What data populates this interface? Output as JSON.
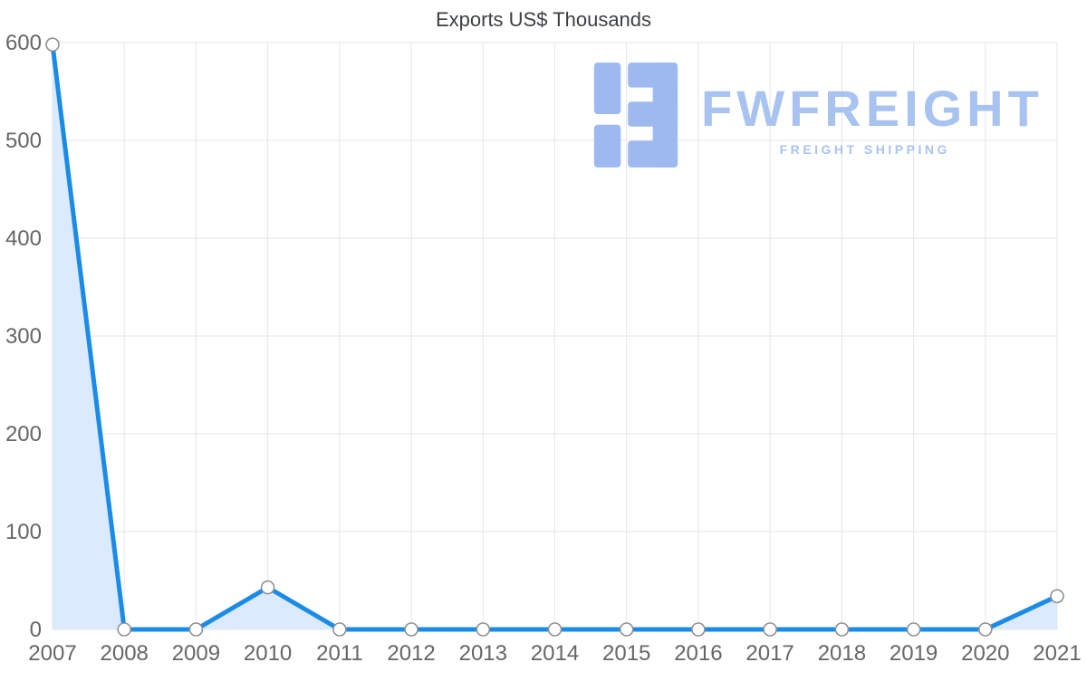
{
  "chart_data": {
    "type": "area",
    "title": "Exports US$ Thousands",
    "x": [
      "2007",
      "2008",
      "2009",
      "2010",
      "2011",
      "2012",
      "2013",
      "2014",
      "2015",
      "2016",
      "2017",
      "2018",
      "2019",
      "2020",
      "2021"
    ],
    "values": [
      598,
      0,
      0,
      43,
      0,
      0,
      0,
      0,
      0,
      0,
      0,
      0,
      0,
      0,
      34
    ],
    "xlabel": "",
    "ylabel": "",
    "ylim": [
      0,
      600
    ],
    "yticks": [
      0,
      100,
      200,
      300,
      400,
      500,
      600
    ],
    "grid": "on",
    "legend": "none",
    "colors": {
      "line": "#1a8ce8",
      "fill": "#dbeafd",
      "marker_fill": "#ffffff",
      "marker_stroke": "#919191",
      "grid": "#e6e6e6",
      "tick_label": "#666666",
      "title": "#3c4043"
    }
  },
  "watermark": {
    "brand": "FWFREIGHT",
    "subtitle": "FREIGHT SHIPPING",
    "icon_color": "#9db9ef",
    "text_color": "#a9c3f1"
  }
}
